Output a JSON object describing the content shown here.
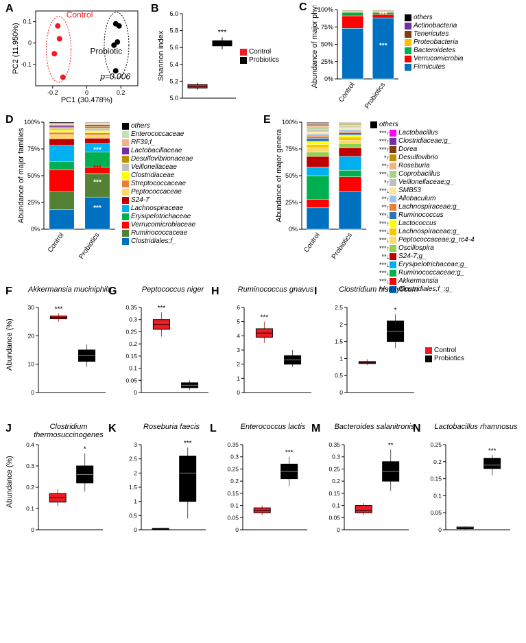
{
  "colors": {
    "control": "#ed1c24",
    "probiotic": "#000000",
    "axis": "#000000",
    "grid": "#d0d0d0"
  },
  "panelA": {
    "label": "A",
    "xlabel": "PC1 (30.478%)",
    "ylabel": "PC2 (11.950%)",
    "pvalue": "p=0.006",
    "control_label": "Control",
    "probiotic_label": "Probiotic",
    "xlim": [
      -0.3,
      0.3
    ],
    "ylim": [
      -0.2,
      0.15
    ],
    "xticks": [
      -0.2,
      0,
      0.2
    ],
    "yticks": [
      -0.1,
      0,
      0.1
    ],
    "control_pts": [
      [
        -0.17,
        0.08
      ],
      [
        -0.16,
        0.02
      ],
      [
        -0.19,
        -0.05
      ],
      [
        -0.14,
        -0.16
      ]
    ],
    "probiotic_pts": [
      [
        0.17,
        0.09
      ],
      [
        0.19,
        0.08
      ],
      [
        0.18,
        0.005
      ],
      [
        0.16,
        -0.01
      ],
      [
        0.17,
        -0.13
      ]
    ]
  },
  "panelB": {
    "label": "B",
    "ylabel": "Shannon index",
    "ylim": [
      5.0,
      6.0
    ],
    "yticks": [
      5.0,
      5.2,
      5.4,
      5.6,
      5.8,
      6.0
    ],
    "sig": "***",
    "control": {
      "q1": 5.12,
      "med": 5.14,
      "q3": 5.16,
      "min": 5.1,
      "max": 5.18
    },
    "probiotic": {
      "q1": 5.62,
      "med": 5.65,
      "q3": 5.68,
      "min": 5.58,
      "max": 5.72
    },
    "legend": {
      "control": "Control",
      "probiotics": "Probiotics"
    }
  },
  "panelC": {
    "label": "C",
    "ylabel": "Abundance of major phyla",
    "yticks": [
      "0%",
      "25%",
      "50%",
      "75%",
      "100%"
    ],
    "xlabels": [
      "Control",
      "Probiotics"
    ],
    "legend": [
      {
        "name": "others",
        "color": "#000000"
      },
      {
        "name": "Actinobacteria",
        "color": "#7030a0"
      },
      {
        "name": "Tenericutes",
        "color": "#833c0c"
      },
      {
        "name": "Proteobacteria",
        "color": "#ffc000"
      },
      {
        "name": "Bacteroidetes",
        "color": "#00b050"
      },
      {
        "name": "Verrucomicrobia",
        "color": "#ff0000"
      },
      {
        "name": "Firmicutes",
        "color": "#0070c0"
      }
    ],
    "bars": {
      "Control": [
        73,
        18,
        5,
        2,
        1,
        0.5,
        0.5
      ],
      "Probiotics": [
        88,
        5,
        3,
        2,
        1,
        0.5,
        0.5
      ]
    },
    "sig_marks": [
      {
        "bar": "Probiotics",
        "y": 90,
        "txt": "***",
        "color": "#fff"
      },
      {
        "bar": "Probiotics",
        "y": 45,
        "txt": "***",
        "color": "#fff"
      }
    ]
  },
  "panelD": {
    "label": "D",
    "ylabel": "Abundance of major families",
    "yticks": [
      "0%",
      "25%",
      "50%",
      "75%",
      "100%"
    ],
    "xlabels": [
      "Control",
      "Probiotics"
    ],
    "legend": [
      {
        "name": "others",
        "color": "#000000"
      },
      {
        "name": "Enterococcaceae",
        "color": "#c5e0b4"
      },
      {
        "name": "RF39;f_",
        "color": "#f4b183"
      },
      {
        "name": "Lactobacillaceae",
        "color": "#7030a0"
      },
      {
        "name": "Desulfovibrionaceae",
        "color": "#bf9000"
      },
      {
        "name": "Veillonellaceae",
        "color": "#bfbfbf"
      },
      {
        "name": "Clostridiaceae",
        "color": "#ffff00"
      },
      {
        "name": "Streptococcaceae",
        "color": "#ed7d31"
      },
      {
        "name": "Peptococcaceae",
        "color": "#ffd966"
      },
      {
        "name": "S24-7",
        "color": "#c00000"
      },
      {
        "name": "Lachnospiraceae",
        "color": "#00b0f0"
      },
      {
        "name": "Erysipelotrichaceae",
        "color": "#00b050"
      },
      {
        "name": "Verrucomicrobiaceae",
        "color": "#ff0000"
      },
      {
        "name": "Ruminococcaceae",
        "color": "#548235"
      },
      {
        "name": "Clostridiales;f_",
        "color": "#0070c0"
      }
    ],
    "bars": {
      "Control": [
        18,
        17,
        20,
        8,
        15,
        6,
        4,
        2,
        2,
        1.5,
        1.5,
        1.5,
        1,
        1,
        1
      ],
      "Probiotics": [
        30,
        22,
        6,
        14,
        8,
        5,
        3,
        2,
        2,
        2,
        2,
        1.5,
        1,
        1,
        0.5
      ]
    },
    "sig_marks": [
      {
        "bar": "Probiotics",
        "y": 72,
        "txt": "***",
        "color": "#fff"
      },
      {
        "bar": "Probiotics",
        "y": 55,
        "txt": "***",
        "color": "#ff0000"
      },
      {
        "bar": "Probiotics",
        "y": 42,
        "txt": "***",
        "color": "#fff"
      },
      {
        "bar": "Probiotics",
        "y": 18,
        "txt": "***",
        "color": "#fff"
      }
    ]
  },
  "panelE": {
    "label": "E",
    "ylabel": "Abundance of major genera",
    "yticks": [
      "0%",
      "25%",
      "50%",
      "75%",
      "100%"
    ],
    "xlabels": [
      "Control",
      "Probiotics"
    ],
    "legend": [
      {
        "name": "others",
        "color": "#000000",
        "sig": "",
        "arrow": ""
      },
      {
        "name": "Lactobacillus",
        "color": "#ff00ff",
        "sig": "***",
        "arrow": "↑"
      },
      {
        "name": "Clostridiaceae;g_",
        "color": "#7030a0",
        "sig": "***",
        "arrow": "↑"
      },
      {
        "name": "Dorea",
        "color": "#833c0c",
        "sig": "***",
        "arrow": "↑"
      },
      {
        "name": "Desulfovibrio",
        "color": "#bf9000",
        "sig": "*",
        "arrow": "↑"
      },
      {
        "name": "Roseburia",
        "color": "#f4b183",
        "sig": "**",
        "arrow": "↑"
      },
      {
        "name": "Coprobacillus",
        "color": "#a9d18e",
        "sig": "***",
        "arrow": "↓"
      },
      {
        "name": "Veillonellaceae;g_",
        "color": "#bfbfbf",
        "sig": "*",
        "arrow": "↑"
      },
      {
        "name": "SMB53",
        "color": "#ffe699",
        "sig": "***",
        "arrow": "↓"
      },
      {
        "name": "Allobaculum",
        "color": "#9dc3e6",
        "sig": "**",
        "arrow": "↑"
      },
      {
        "name": "Lachnospiraceae;g_",
        "color": "#ed7d31",
        "sig": "**",
        "arrow": "↑"
      },
      {
        "name": "Ruminococcus",
        "color": "#2e75b6",
        "sig": "***",
        "arrow": "↓"
      },
      {
        "name": "Lactococcus",
        "color": "#ffff00",
        "sig": "***",
        "arrow": "↑"
      },
      {
        "name": "Lachnospiraceae;g_",
        "color": "#ffc000",
        "sig": "***",
        "arrow": "↓"
      },
      {
        "name": "Peptococcaceae;g_rc4-4",
        "color": "#ffd966",
        "sig": "***",
        "arrow": "↓"
      },
      {
        "name": "Oscillospira",
        "color": "#92d050",
        "sig": "***",
        "arrow": "↑"
      },
      {
        "name": "S24-7;g_",
        "color": "#c00000",
        "sig": "**",
        "arrow": "↓"
      },
      {
        "name": "Erysipelotrichaceae;g_",
        "color": "#00b0f0",
        "sig": "***",
        "arrow": "↓"
      },
      {
        "name": "Ruminococcaceae;g_",
        "color": "#00b050",
        "sig": "***",
        "arrow": "↓"
      },
      {
        "name": "Akkermansia",
        "color": "#ff0000",
        "sig": "***",
        "arrow": "↓"
      },
      {
        "name": "Clostridiales;f_;g_",
        "color": "#0070c0",
        "sig": "***",
        "arrow": "↑"
      }
    ],
    "bars": {
      "Control": [
        20,
        8,
        22,
        8,
        10,
        4,
        4,
        3,
        3,
        3,
        2,
        2,
        2,
        2,
        1.5,
        1.5,
        1,
        1,
        0.7,
        0.7,
        0.6
      ],
      "Probiotics": [
        35,
        14,
        6,
        13,
        8,
        4,
        3,
        3,
        2,
        2,
        1.5,
        1.5,
        1.2,
        1,
        1,
        1,
        0.8,
        0.6,
        0.5,
        0.5,
        0.4
      ]
    }
  },
  "boxPanels": {
    "ylabel": "Abundance (%)",
    "legend": {
      "control": "Control",
      "probiotics": "Probiotics"
    },
    "items": [
      {
        "id": "F",
        "title": "Akkermansia muciniphila",
        "ylim": [
          0,
          30
        ],
        "yticks": [
          0,
          10,
          20,
          30
        ],
        "sig": "***",
        "control": {
          "q1": 26,
          "med": 26.5,
          "q3": 27,
          "min": 25,
          "max": 28
        },
        "probiotic": {
          "q1": 11,
          "med": 13,
          "q3": 15,
          "min": 9,
          "max": 17
        }
      },
      {
        "id": "G",
        "title": "Peptococcus niger",
        "ylim": [
          0,
          0.35
        ],
        "yticks": [
          0,
          0.05,
          0.1,
          0.15,
          0.2,
          0.25,
          0.3,
          0.35
        ],
        "sig": "***",
        "control": {
          "q1": 0.26,
          "med": 0.28,
          "q3": 0.3,
          "min": 0.23,
          "max": 0.33
        },
        "probiotic": {
          "q1": 0.02,
          "med": 0.03,
          "q3": 0.04,
          "min": 0.01,
          "max": 0.05
        }
      },
      {
        "id": "H",
        "title": "Ruminococcus gnavus",
        "ylim": [
          0,
          6
        ],
        "yticks": [
          0,
          1,
          2,
          3,
          4,
          5,
          6
        ],
        "sig": "***",
        "control": {
          "q1": 3.9,
          "med": 4.2,
          "q3": 4.5,
          "min": 3.5,
          "max": 5.0
        },
        "probiotic": {
          "q1": 2.0,
          "med": 2.3,
          "q3": 2.6,
          "min": 1.8,
          "max": 3.0
        }
      },
      {
        "id": "I",
        "title": "Clostridium histolyticum",
        "ylim": [
          0,
          2.5
        ],
        "yticks": [
          0,
          0.5,
          1.0,
          1.5,
          2.0,
          2.5
        ],
        "sig": "*",
        "control": {
          "q1": 0.85,
          "med": 0.88,
          "q3": 0.91,
          "min": 0.8,
          "max": 0.98
        },
        "probiotic": {
          "q1": 1.5,
          "med": 1.8,
          "q3": 2.1,
          "min": 1.3,
          "max": 2.3
        }
      },
      {
        "id": "J",
        "title": "Clostridium thermosuccinogenes",
        "ylim": [
          0,
          0.4
        ],
        "yticks": [
          0,
          0.1,
          0.2,
          0.3,
          0.4
        ],
        "sig": "*",
        "control": {
          "q1": 0.13,
          "med": 0.15,
          "q3": 0.17,
          "min": 0.11,
          "max": 0.19
        },
        "probiotic": {
          "q1": 0.22,
          "med": 0.26,
          "q3": 0.3,
          "min": 0.18,
          "max": 0.36
        }
      },
      {
        "id": "K",
        "title": "Roseburia faecis",
        "ylim": [
          0,
          3.0
        ],
        "yticks": [
          0,
          0.5,
          1.0,
          1.5,
          2.0,
          2.5,
          3.0
        ],
        "sig": "***",
        "control": {
          "q1": 0.02,
          "med": 0.03,
          "q3": 0.05,
          "min": 0.01,
          "max": 0.07
        },
        "probiotic": {
          "q1": 1.0,
          "med": 2.0,
          "q3": 2.6,
          "min": 0.4,
          "max": 2.9
        }
      },
      {
        "id": "L",
        "title": "Enterococcus lactis",
        "ylim": [
          0,
          0.35
        ],
        "yticks": [
          0,
          0.05,
          0.1,
          0.15,
          0.2,
          0.25,
          0.3,
          0.35
        ],
        "sig": "***",
        "control": {
          "q1": 0.07,
          "med": 0.08,
          "q3": 0.09,
          "min": 0.06,
          "max": 0.1
        },
        "probiotic": {
          "q1": 0.21,
          "med": 0.24,
          "q3": 0.27,
          "min": 0.18,
          "max": 0.3
        }
      },
      {
        "id": "M",
        "title": "Bacteroides salanitronis",
        "ylim": [
          0,
          0.35
        ],
        "yticks": [
          0,
          0.05,
          0.1,
          0.15,
          0.2,
          0.25,
          0.3,
          0.35
        ],
        "sig": "**",
        "control": {
          "q1": 0.07,
          "med": 0.08,
          "q3": 0.1,
          "min": 0.06,
          "max": 0.11
        },
        "probiotic": {
          "q1": 0.2,
          "med": 0.24,
          "q3": 0.28,
          "min": 0.16,
          "max": 0.33
        }
      },
      {
        "id": "N",
        "title": "Lactobacillus rhamnosus",
        "ylim": [
          0,
          0.25
        ],
        "yticks": [
          0,
          0.05,
          0.1,
          0.15,
          0.2,
          0.25
        ],
        "sig": "***",
        "control": {
          "q1": 0.003,
          "med": 0.005,
          "q3": 0.008,
          "min": 0.001,
          "max": 0.01
        },
        "probiotic": {
          "q1": 0.18,
          "med": 0.19,
          "q3": 0.21,
          "min": 0.16,
          "max": 0.22
        }
      }
    ]
  }
}
